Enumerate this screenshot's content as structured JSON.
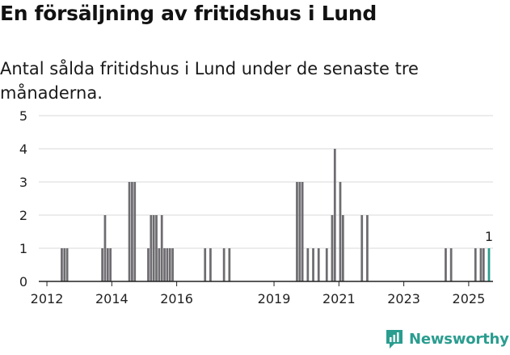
{
  "header": {
    "title": "En försäljning av fritidshus i Lund",
    "subtitle": "Antal sålda fritidshus i Lund under de senaste tre månaderna."
  },
  "brand": {
    "name": "Newsworthy",
    "icon": "newsworthy-chart-icon",
    "color": "#2a9d8f"
  },
  "colors": {
    "bar": "#6e6c70",
    "highlight": "#2a9d8f",
    "axis": "#222222",
    "grid": "#d9d9d9"
  },
  "chart_data": {
    "type": "bar",
    "title": "En försäljning av fritidshus i Lund",
    "subtitle": "Antal sålda fritidshus i Lund under de senaste tre månaderna.",
    "ylim": [
      0,
      5
    ],
    "yticks": [
      0,
      1,
      2,
      3,
      4,
      5
    ],
    "xticks": [
      "2012",
      "2014",
      "2016",
      "2019",
      "2021",
      "2023",
      "2025"
    ],
    "xlim": [
      "2011-10",
      "2025-10"
    ],
    "grid": true,
    "last_value_label": "1",
    "series": [
      {
        "values": [
          {
            "x": "2012-06",
            "y": 1
          },
          {
            "x": "2012-07",
            "y": 1
          },
          {
            "x": "2012-08",
            "y": 1
          },
          {
            "x": "2013-09",
            "y": 1
          },
          {
            "x": "2013-10",
            "y": 2
          },
          {
            "x": "2013-11",
            "y": 1
          },
          {
            "x": "2013-12",
            "y": 1
          },
          {
            "x": "2014-07",
            "y": 3
          },
          {
            "x": "2014-08",
            "y": 3
          },
          {
            "x": "2014-09",
            "y": 3
          },
          {
            "x": "2015-02",
            "y": 1
          },
          {
            "x": "2015-03",
            "y": 2
          },
          {
            "x": "2015-04",
            "y": 2
          },
          {
            "x": "2015-05",
            "y": 2
          },
          {
            "x": "2015-06",
            "y": 1
          },
          {
            "x": "2015-07",
            "y": 2
          },
          {
            "x": "2015-08",
            "y": 1
          },
          {
            "x": "2015-09",
            "y": 1
          },
          {
            "x": "2015-10",
            "y": 1
          },
          {
            "x": "2015-11",
            "y": 1
          },
          {
            "x": "2016-11",
            "y": 1
          },
          {
            "x": "2017-01",
            "y": 1
          },
          {
            "x": "2017-06",
            "y": 1
          },
          {
            "x": "2017-08",
            "y": 1
          },
          {
            "x": "2019-09",
            "y": 3
          },
          {
            "x": "2019-10",
            "y": 3
          },
          {
            "x": "2019-11",
            "y": 3
          },
          {
            "x": "2020-01",
            "y": 1
          },
          {
            "x": "2020-03",
            "y": 1
          },
          {
            "x": "2020-05",
            "y": 1
          },
          {
            "x": "2020-08",
            "y": 1
          },
          {
            "x": "2020-10",
            "y": 2
          },
          {
            "x": "2020-11",
            "y": 4
          },
          {
            "x": "2021-01",
            "y": 3
          },
          {
            "x": "2021-02",
            "y": 2
          },
          {
            "x": "2021-09",
            "y": 2
          },
          {
            "x": "2021-11",
            "y": 2
          },
          {
            "x": "2024-04",
            "y": 1
          },
          {
            "x": "2024-06",
            "y": 1
          },
          {
            "x": "2025-03",
            "y": 1
          },
          {
            "x": "2025-05",
            "y": 1
          },
          {
            "x": "2025-06",
            "y": 1
          },
          {
            "x": "2025-08",
            "y": 1,
            "highlight": true
          }
        ]
      }
    ]
  }
}
